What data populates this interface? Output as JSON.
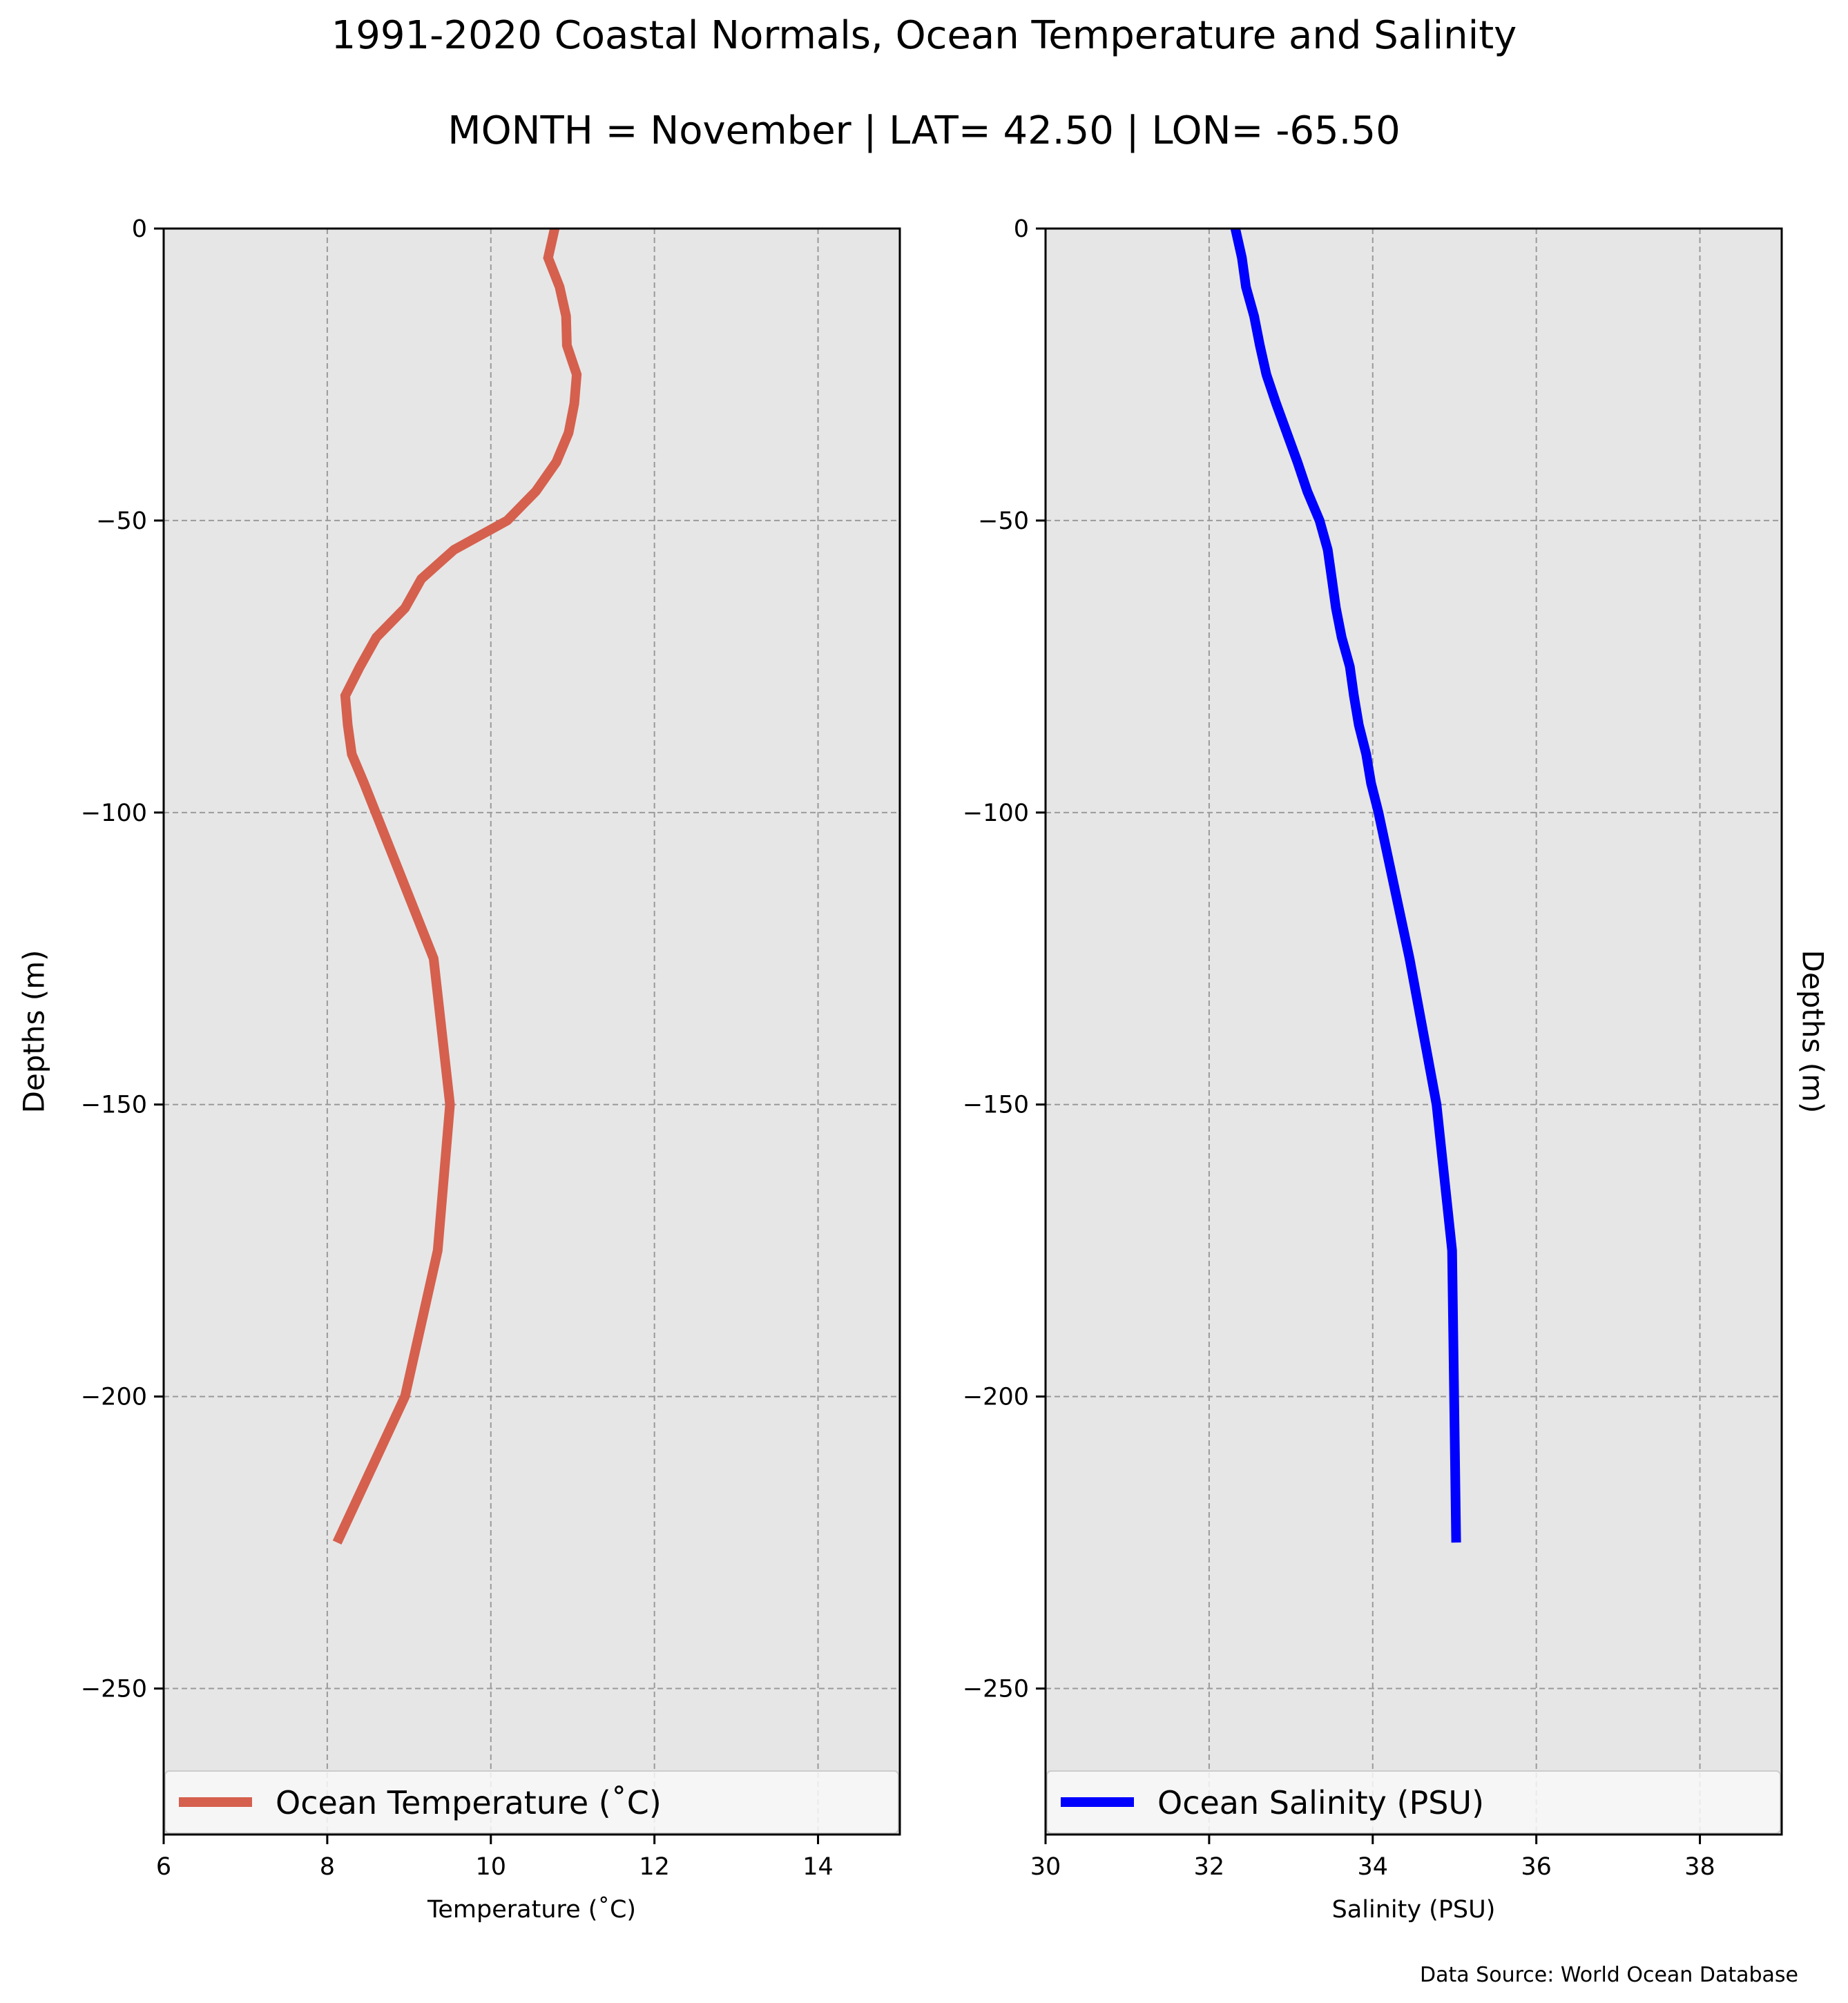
{
  "figure": {
    "title": "1991-2020 Coastal Normals, Ocean Temperature and Salinity",
    "subtitle": "MONTH = November | LAT= 42.50 | LON= -65.50",
    "source_note": "Data Source: World Ocean Database"
  },
  "colors": {
    "plot_background": "#e6e6e6",
    "grid": "#9a9a9a",
    "temperature_line": "#d5604e",
    "salinity_line": "#0000ff",
    "legend_background": "#f8f8f8"
  },
  "chart_data": [
    {
      "type": "line",
      "panel": "left",
      "xlabel": "Temperature ($^\\circ$C)",
      "xlabel_display": "Temperature (˚C)",
      "ylabel": "Depths (m)",
      "xlim": [
        6,
        15
      ],
      "ylim": [
        -275,
        0
      ],
      "x_ticks": [
        6,
        8,
        10,
        12,
        14
      ],
      "x_tick_labels": [
        "6",
        "8",
        "10",
        "12",
        "14"
      ],
      "y_ticks": [
        0,
        -50,
        -100,
        -150,
        -200,
        -250
      ],
      "y_tick_labels": [
        "0",
        "−50",
        "−100",
        "−150",
        "−200",
        "−250"
      ],
      "grid": true,
      "legend_position": "lower center",
      "series": [
        {
          "name": "Ocean Temperature (˚C)",
          "color": "#d5604e",
          "x": [
            10.78,
            10.7,
            10.84,
            10.92,
            10.93,
            11.05,
            11.02,
            10.95,
            10.8,
            10.55,
            10.2,
            9.55,
            9.15,
            8.95,
            8.6,
            8.4,
            8.22,
            8.25,
            8.3,
            8.45,
            9.3,
            9.5,
            9.35,
            8.95,
            8.12
          ],
          "y": [
            0,
            -5,
            -10,
            -15,
            -20,
            -25,
            -30,
            -35,
            -40,
            -45,
            -50,
            -55,
            -60,
            -65,
            -70,
            -75,
            -80,
            -85,
            -90,
            -95,
            -125,
            -150,
            -175,
            -200,
            -225
          ]
        }
      ]
    },
    {
      "type": "line",
      "panel": "right",
      "xlabel": "Salinity (PSU)",
      "ylabel": "Depths (m)",
      "xlim": [
        30,
        39
      ],
      "ylim": [
        -275,
        0
      ],
      "x_ticks": [
        30,
        32,
        34,
        36,
        38
      ],
      "x_tick_labels": [
        "30",
        "32",
        "34",
        "36",
        "38"
      ],
      "y_ticks": [
        0,
        -50,
        -100,
        -150,
        -200,
        -250
      ],
      "y_tick_labels": [
        "0",
        "−50",
        "−100",
        "−150",
        "−200",
        "−250"
      ],
      "grid": true,
      "legend_position": "lower center",
      "series": [
        {
          "name": "Ocean Salinity (PSU)",
          "color": "#0000ff",
          "x": [
            32.32,
            32.4,
            32.45,
            32.55,
            32.62,
            32.7,
            32.82,
            32.95,
            33.08,
            33.2,
            33.35,
            33.45,
            33.5,
            33.55,
            33.62,
            33.72,
            33.77,
            33.83,
            33.92,
            33.98,
            34.07,
            34.45,
            34.78,
            34.97,
            35.02
          ],
          "y": [
            0,
            -5,
            -10,
            -15,
            -20,
            -25,
            -30,
            -35,
            -40,
            -45,
            -50,
            -55,
            -60,
            -65,
            -70,
            -75,
            -80,
            -85,
            -90,
            -95,
            -100,
            -125,
            -150,
            -175,
            -225
          ]
        }
      ]
    }
  ]
}
